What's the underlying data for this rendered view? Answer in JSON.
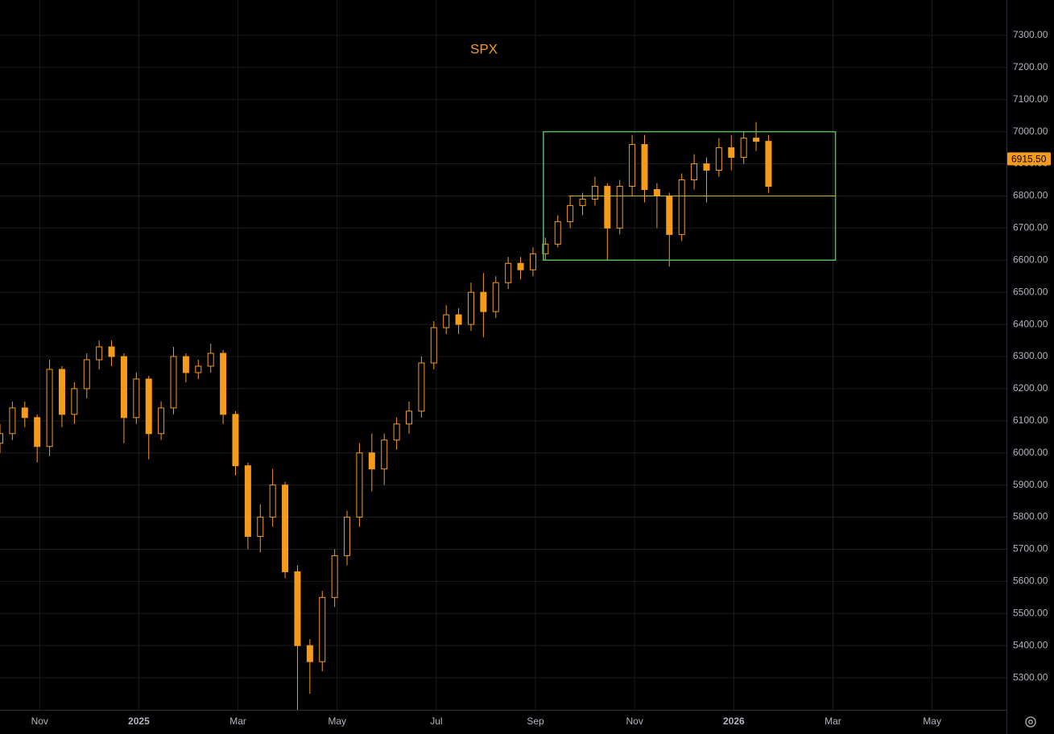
{
  "chart_data": {
    "type": "candlestick",
    "title": "SPX",
    "color": "#f59b1c",
    "x": [
      -0.8,
      -0.55,
      -0.3,
      -0.05,
      0.2,
      0.45,
      0.7,
      0.95,
      1.2,
      1.45,
      1.7,
      1.95,
      2.2,
      2.45,
      2.7,
      2.95,
      3.2,
      3.45,
      3.7,
      3.95,
      4.2,
      4.45,
      4.7,
      4.95,
      5.2,
      5.45,
      5.7,
      5.95,
      6.2,
      6.45,
      6.7,
      6.95,
      7.2,
      7.45,
      7.7,
      7.95,
      8.2,
      8.45,
      8.7,
      8.95,
      9.2,
      9.45,
      9.7,
      9.95,
      10.2,
      10.45,
      10.7,
      10.95,
      11.2,
      11.45,
      11.7,
      11.95,
      12.2,
      12.45,
      12.7,
      12.95,
      13.2,
      13.45,
      13.7,
      13.95,
      14.2,
      14.45,
      14.7
    ],
    "open": [
      6030,
      6060,
      6140,
      6110,
      6020,
      6260,
      6120,
      6200,
      6290,
      6330,
      6300,
      6110,
      6230,
      6060,
      6140,
      6300,
      6250,
      6270,
      6310,
      6120,
      5960,
      5740,
      5800,
      5900,
      5630,
      5400,
      5350,
      5550,
      5680,
      5800,
      6000,
      5950,
      6040,
      6090,
      6130,
      6280,
      6390,
      6430,
      6400,
      6500,
      6440,
      6530,
      6590,
      6570,
      6620,
      6650,
      6720,
      6770,
      6790,
      6830,
      6700,
      6830,
      6960,
      6820,
      6800,
      6680,
      6850,
      6900,
      6880,
      6950,
      6920,
      6980,
      6970
    ],
    "high": [
      6090,
      6160,
      6160,
      6120,
      6290,
      6270,
      6220,
      6310,
      6350,
      6350,
      6310,
      6250,
      6240,
      6160,
      6330,
      6310,
      6290,
      6340,
      6320,
      6130,
      5970,
      5840,
      5950,
      5910,
      5650,
      5420,
      5570,
      5700,
      5820,
      6030,
      6060,
      6060,
      6110,
      6160,
      6300,
      6410,
      6460,
      6450,
      6530,
      6560,
      6550,
      6610,
      6610,
      6640,
      6670,
      6740,
      6800,
      6810,
      6860,
      6840,
      6850,
      6990,
      6990,
      6840,
      6810,
      6870,
      6930,
      6920,
      6980,
      6990,
      7000,
      7030,
      6990
    ],
    "low": [
      6000,
      6040,
      6080,
      5970,
      5990,
      6080,
      6090,
      6170,
      6260,
      6270,
      6030,
      6090,
      5980,
      6040,
      6120,
      6220,
      6230,
      6250,
      6090,
      5930,
      5700,
      5690,
      5770,
      5610,
      5200,
      5250,
      5320,
      5520,
      5650,
      5770,
      5880,
      5900,
      6010,
      6060,
      6110,
      6260,
      6370,
      6370,
      6380,
      6360,
      6420,
      6510,
      6540,
      6550,
      6600,
      6640,
      6700,
      6740,
      6770,
      6600,
      6680,
      6800,
      6780,
      6700,
      6580,
      6660,
      6820,
      6780,
      6860,
      6880,
      6900,
      6940,
      6810
    ],
    "close": [
      6060,
      6140,
      6110,
      6020,
      6260,
      6120,
      6200,
      6290,
      6330,
      6300,
      6110,
      6230,
      6060,
      6140,
      6300,
      6250,
      6270,
      6310,
      6120,
      5960,
      5740,
      5800,
      5900,
      5630,
      5400,
      5350,
      5550,
      5680,
      5800,
      6000,
      5950,
      6040,
      6090,
      6130,
      6280,
      6390,
      6430,
      6400,
      6500,
      6440,
      6530,
      6590,
      6570,
      6620,
      6650,
      6720,
      6770,
      6790,
      6830,
      6700,
      6830,
      6960,
      6820,
      6800,
      6680,
      6850,
      6900,
      6880,
      6950,
      6920,
      6980,
      6970,
      6830
    ],
    "xlim": [
      -0.8,
      19.5
    ],
    "xticks": [
      {
        "value": 0,
        "label": "Nov"
      },
      {
        "value": 2,
        "label": "2025"
      },
      {
        "value": 4,
        "label": "Mar"
      },
      {
        "value": 6,
        "label": "May"
      },
      {
        "value": 8,
        "label": "Jul"
      },
      {
        "value": 10,
        "label": "Sep"
      },
      {
        "value": 12,
        "label": "Nov"
      },
      {
        "value": 14,
        "label": "2026"
      },
      {
        "value": 16,
        "label": "Mar"
      },
      {
        "value": 18,
        "label": "May"
      }
    ],
    "ylim": [
      5200,
      7410
    ],
    "yticks": [
      {
        "value": 5300,
        "label": "5300.00"
      },
      {
        "value": 5400,
        "label": "5400.00"
      },
      {
        "value": 5500,
        "label": "5500.00"
      },
      {
        "value": 5600,
        "label": "5600.00"
      },
      {
        "value": 5700,
        "label": "5700.00"
      },
      {
        "value": 5800,
        "label": "5800.00"
      },
      {
        "value": 5900,
        "label": "5900.00"
      },
      {
        "value": 6000,
        "label": "6000.00"
      },
      {
        "value": 6100,
        "label": "6100.00"
      },
      {
        "value": 6200,
        "label": "6200.00"
      },
      {
        "value": 6300,
        "label": "6300.00"
      },
      {
        "value": 6400,
        "label": "6400.00"
      },
      {
        "value": 6500,
        "label": "6500.00"
      },
      {
        "value": 6600,
        "label": "6600.00"
      },
      {
        "value": 6700,
        "label": "6700.00"
      },
      {
        "value": 6800,
        "label": "6800.00"
      },
      {
        "value": 6900,
        "label": "6900.00"
      },
      {
        "value": 7000,
        "label": "7000.00"
      },
      {
        "value": 7100,
        "label": "7100.00"
      },
      {
        "value": 7200,
        "label": "7200.00"
      },
      {
        "value": 7300,
        "label": "7300.00"
      }
    ],
    "grid": true,
    "last_price": {
      "value": 6915.5,
      "label": "6915.50"
    },
    "range_box": {
      "x": [
        10.16,
        16.05
      ],
      "y": [
        6600,
        7000
      ],
      "color": "#5cb85c"
    },
    "level_line": {
      "x": [
        10.67,
        16.05
      ],
      "y": 6800,
      "color": "#d4b21a"
    }
  }
}
